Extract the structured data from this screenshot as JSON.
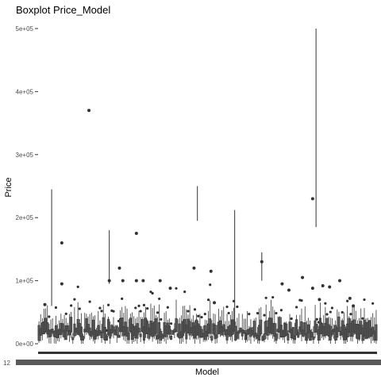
{
  "chart_data": {
    "type": "boxplot",
    "title": "Boxplot Price_Model",
    "xlabel": "Model",
    "ylabel": "Price",
    "ylim": [
      -5000,
      510000
    ],
    "y_ticks": [
      {
        "value": 0,
        "label": "0e+00"
      },
      {
        "value": 100000,
        "label": "1e+05"
      },
      {
        "value": 200000,
        "label": "2e+05"
      },
      {
        "value": 300000,
        "label": "3e+05"
      },
      {
        "value": 400000,
        "label": "4e+05"
      },
      {
        "value": 500000,
        "label": "5e+05"
      }
    ],
    "x_first_tick_label": "12",
    "grid": false,
    "notable_outliers": [
      {
        "position": 0.02,
        "value": 62000
      },
      {
        "position": 0.07,
        "value": 160000
      },
      {
        "position": 0.07,
        "value": 95000
      },
      {
        "position": 0.15,
        "value": 370000
      },
      {
        "position": 0.21,
        "value": 100000
      },
      {
        "position": 0.24,
        "value": 120000
      },
      {
        "position": 0.25,
        "value": 100000
      },
      {
        "position": 0.29,
        "value": 175000
      },
      {
        "position": 0.29,
        "value": 100000
      },
      {
        "position": 0.31,
        "value": 100000
      },
      {
        "position": 0.36,
        "value": 100000
      },
      {
        "position": 0.39,
        "value": 88000
      },
      {
        "position": 0.46,
        "value": 120000
      },
      {
        "position": 0.51,
        "value": 115000
      },
      {
        "position": 0.52,
        "value": 65000
      },
      {
        "position": 0.66,
        "value": 130000
      },
      {
        "position": 0.72,
        "value": 95000
      },
      {
        "position": 0.74,
        "value": 85000
      },
      {
        "position": 0.78,
        "value": 105000
      },
      {
        "position": 0.81,
        "value": 230000
      },
      {
        "position": 0.81,
        "value": 88000
      },
      {
        "position": 0.83,
        "value": 70000
      },
      {
        "position": 0.84,
        "value": 92000
      },
      {
        "position": 0.86,
        "value": 90000
      },
      {
        "position": 0.89,
        "value": 100000
      },
      {
        "position": 0.92,
        "value": 72000
      },
      {
        "position": 0.93,
        "value": 60000
      }
    ],
    "notable_whiskers": [
      {
        "position": 0.04,
        "low": 60000,
        "high": 245000
      },
      {
        "position": 0.21,
        "low": 95000,
        "high": 180000
      },
      {
        "position": 0.47,
        "low": 195000,
        "high": 250000
      },
      {
        "position": 0.58,
        "low": 30000,
        "high": 212000
      },
      {
        "position": 0.66,
        "low": 100000,
        "high": 145000
      },
      {
        "position": 0.82,
        "low": 185000,
        "high": 500000
      }
    ]
  }
}
